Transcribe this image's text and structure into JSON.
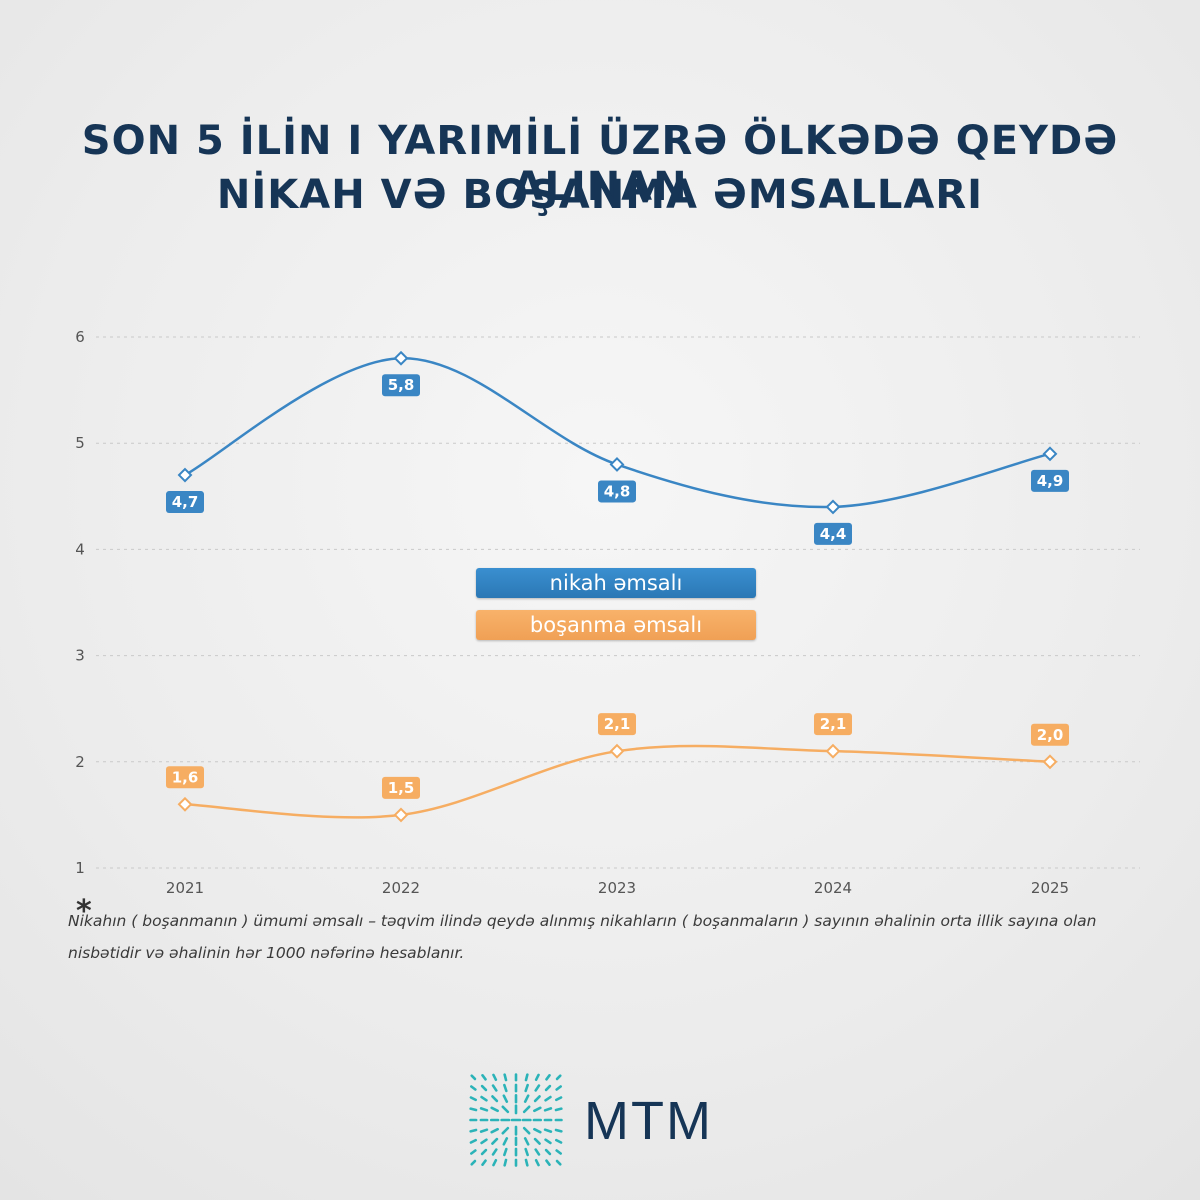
{
  "title_line1": "SON 5 İLİN I YARIMİLİ ÜZRƏ ÖLKƏDƏ QEYDƏ ALINAN",
  "title_line2": "NİKAH VƏ BOŞANMA ƏMSALLARI",
  "footnote_marker": "*",
  "footnote": "Nikahın ( boşanmanın ) ümumi əmsalı – təqvim ilində qeydə alınmış nikahların ( boşanmaların ) sayının əhalinin orta illik sayına olan nisbətidir və əhalinin hər 1000 nəfərinə hesablanır.",
  "logo_text": "MTM",
  "chart_data": {
    "type": "line",
    "x": [
      "2021",
      "2022",
      "2023",
      "2024",
      "2025"
    ],
    "yticks": [
      "1",
      "2",
      "3",
      "4",
      "5",
      "6"
    ],
    "ylim": [
      1,
      6
    ],
    "grid": true,
    "legend_position": "center",
    "series": [
      {
        "name": "nikah əmsalı",
        "values": [
          4.7,
          5.8,
          4.8,
          4.4,
          4.9
        ],
        "labels": [
          "4,7",
          "5,8",
          "4,8",
          "4,4",
          "4,9"
        ],
        "color": "#3a86c4"
      },
      {
        "name": "boşanma əmsalı",
        "values": [
          1.6,
          1.5,
          2.1,
          2.1,
          2.0
        ],
        "labels": [
          "1,6",
          "1,5",
          "2,1",
          "2,1",
          "2,0"
        ],
        "color": "#f6ad62"
      }
    ]
  },
  "colors": {
    "title": "#163556",
    "nikah": "#3a86c4",
    "bosanma": "#f6ad62",
    "logo": "#2bb3b8"
  }
}
